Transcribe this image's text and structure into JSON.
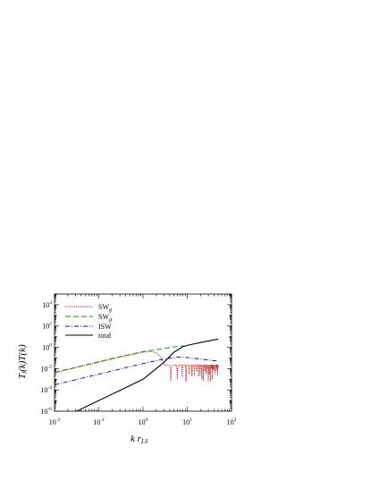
{
  "chart_data": {
    "type": "line",
    "xscale": "log",
    "yscale": "log",
    "xlim": [
      0.01,
      100
    ],
    "ylim": [
      1e-06,
      100000
    ],
    "xlabel": "k r_LS",
    "ylabel": "T_l(k)T(k)",
    "xticks": [
      "10^-2",
      "10^-1",
      "10^0",
      "10^1",
      "10^2"
    ],
    "yticks": [
      "10^-6",
      "10^-4",
      "10^-2",
      "10^0",
      "10^2",
      "10^4"
    ],
    "legend_position": "top-left",
    "grid": false,
    "series": [
      {
        "name": "SWg",
        "style": "dotted",
        "color": "#cc0000",
        "x": [
          0.01,
          0.03,
          0.1,
          0.3,
          1,
          1.5,
          2,
          2.5,
          3
        ],
        "y": [
          0.004,
          0.012,
          0.04,
          0.12,
          0.35,
          0.42,
          0.3,
          0.12,
          0.03
        ],
        "oscillating_tail": {
          "x_start": 3,
          "x_end": 50,
          "center": 0.012,
          "min": 0.0005
        }
      },
      {
        "name": "SWg",
        "style": "dashed",
        "color": "#009900",
        "x": [
          0.01,
          0.03,
          0.1,
          0.3,
          1,
          2,
          3,
          5,
          8
        ],
        "y": [
          0.0045,
          0.013,
          0.045,
          0.13,
          0.4,
          0.6,
          0.8,
          1.1,
          1.4
        ]
      },
      {
        "name": "ISW",
        "style": "dashdot",
        "color": "#0000cc",
        "x": [
          0.01,
          0.03,
          0.1,
          0.3,
          1,
          3,
          6,
          10,
          15,
          25,
          50
        ],
        "y": [
          0.0003,
          0.0009,
          0.003,
          0.009,
          0.03,
          0.08,
          0.12,
          0.11,
          0.09,
          0.07,
          0.05
        ]
      },
      {
        "name": "total",
        "style": "solid",
        "color": "#000000",
        "x": [
          0.01,
          0.03,
          0.1,
          0.3,
          1,
          3,
          5,
          8,
          12,
          20,
          50
        ],
        "y": [
          1e-07,
          9e-07,
          1e-05,
          9e-05,
          0.001,
          0.04,
          0.35,
          1.2,
          1.8,
          2.8,
          6
        ]
      }
    ],
    "legend": [
      {
        "label": "SW",
        "sub": "g"
      },
      {
        "label": "SW",
        "sub": "g"
      },
      {
        "label": "ISW",
        "sub": ""
      },
      {
        "label": "total",
        "sub": ""
      }
    ]
  }
}
